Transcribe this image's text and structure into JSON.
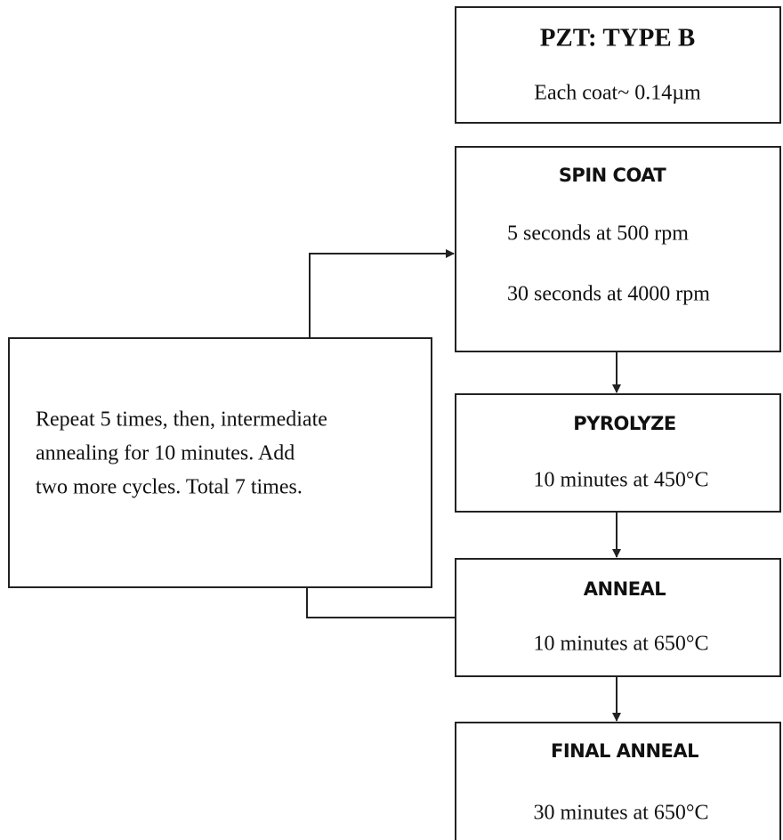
{
  "nodes": [
    {
      "title": "PZT: TYPE B",
      "lines": [
        "Each coat~ 0.14µm"
      ]
    },
    {
      "title": "SPIN COAT",
      "lines": [
        "5 seconds at 500 rpm",
        "30 seconds at 4000 rpm"
      ]
    },
    {
      "title": "PYROLYZE",
      "lines": [
        "10 minutes at 450°C"
      ]
    },
    {
      "title": "ANNEAL",
      "lines": [
        "10 minutes at 650°C"
      ]
    },
    {
      "title": "FINAL ANNEAL",
      "lines": [
        "30 minutes at 650°C"
      ]
    }
  ],
  "note": {
    "lines": [
      "Repeat 5 times, then, intermediate",
      "annealing for 10 minutes. Add",
      "two more cycles. Total 7 times."
    ]
  }
}
